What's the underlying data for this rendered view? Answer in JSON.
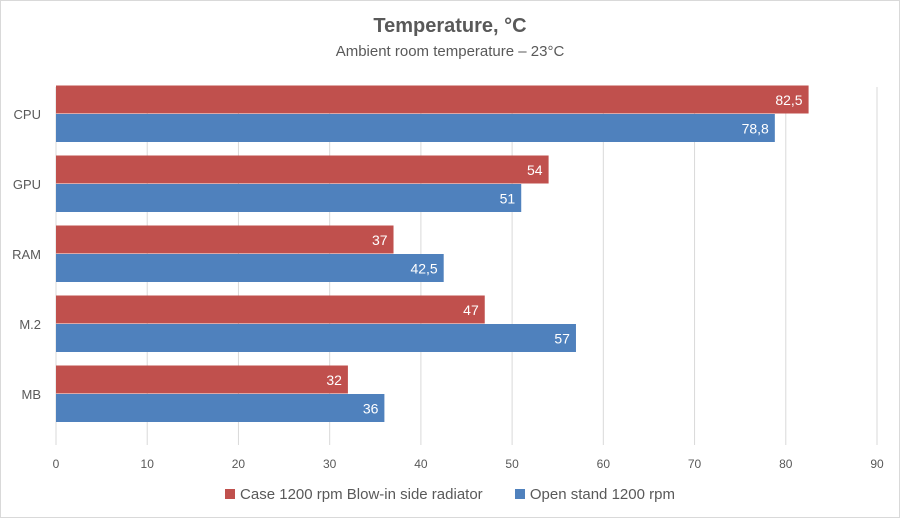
{
  "chart_data": {
    "type": "bar",
    "orientation": "horizontal",
    "title": "Temperature, °C",
    "subtitle": "Ambient room temperature – 23°C",
    "categories": [
      "CPU",
      "GPU",
      "RAM",
      "M.2",
      "MB"
    ],
    "series": [
      {
        "name": "Case 1200 rpm Blow-in side radiator",
        "color": "#C0504D",
        "values": [
          82.5,
          54,
          37,
          47,
          32
        ],
        "labels": [
          "82,5",
          "54",
          "37",
          "47",
          "32"
        ]
      },
      {
        "name": "Open stand 1200 rpm",
        "color": "#4F81BD",
        "values": [
          78.8,
          51,
          42.5,
          57,
          36
        ],
        "labels": [
          "78,8",
          "51",
          "42,5",
          "57",
          "36"
        ]
      }
    ],
    "xlim": [
      0,
      90
    ],
    "xticks": [
      "0",
      "10",
      "20",
      "30",
      "40",
      "50",
      "60",
      "70",
      "80",
      "90"
    ],
    "grid": true,
    "legend": "bottom"
  }
}
